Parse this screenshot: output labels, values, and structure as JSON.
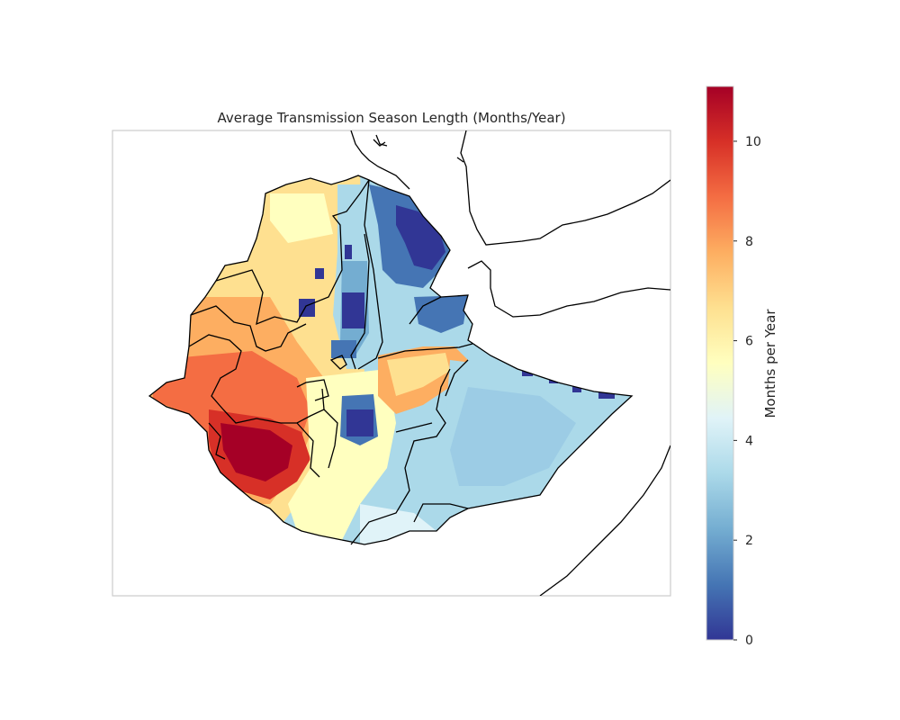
{
  "title": "Average Transmission Season Length (Months/Year)",
  "colorbar": {
    "label": "Months per Year",
    "range": [
      0,
      11.1
    ],
    "ticks": [
      {
        "value": 0,
        "label": "0"
      },
      {
        "value": 2,
        "label": "2"
      },
      {
        "value": 4,
        "label": "4"
      },
      {
        "value": 6,
        "label": "6"
      },
      {
        "value": 8,
        "label": "8"
      },
      {
        "value": 10,
        "label": "10"
      }
    ],
    "colormap": "RdYlBu_r",
    "colors": [
      "#313695",
      "#4575b4",
      "#74add1",
      "#abd9e9",
      "#e0f3f8",
      "#ffffbf",
      "#fee090",
      "#fdae61",
      "#f46d43",
      "#d73027",
      "#a50026"
    ]
  },
  "map": {
    "region": "Ethiopia",
    "regions_highlighted": {
      "high_values_west_southwest": "9-11",
      "low_values_northeast_afar": "0-1",
      "east_somali": "2-4"
    }
  }
}
